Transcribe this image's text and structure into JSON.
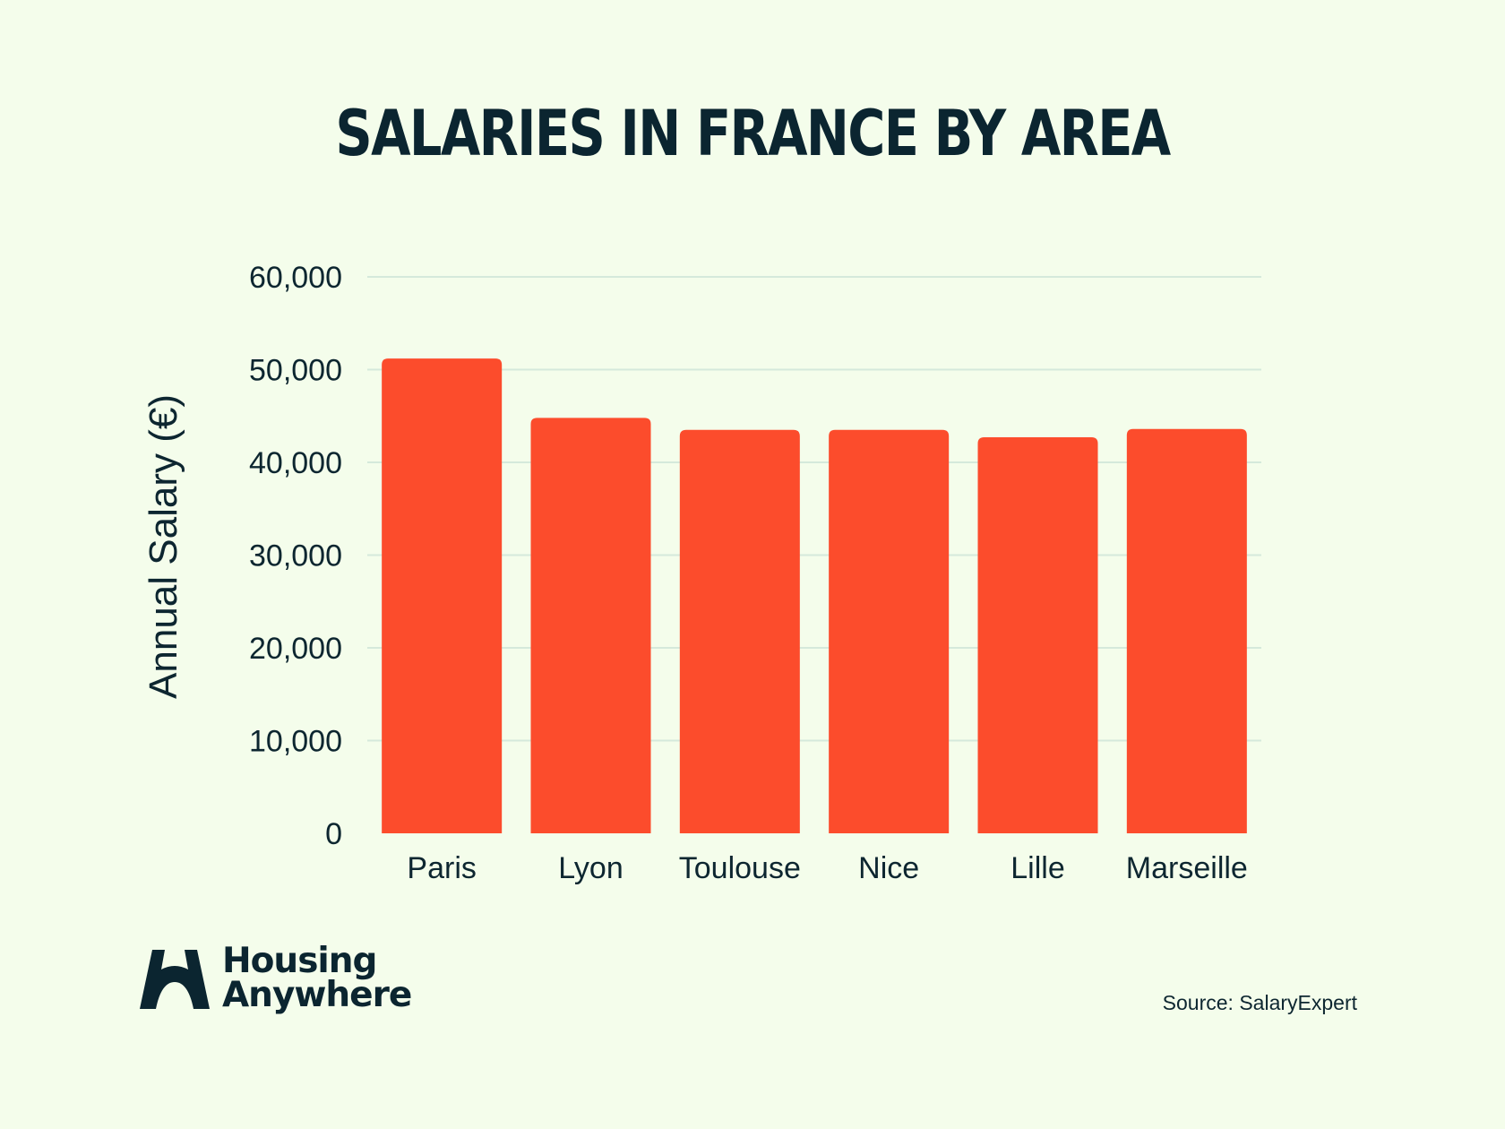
{
  "title": "SALARIES IN FRANCE BY AREA",
  "brand": {
    "line1": "Housing",
    "line2": "Anywhere",
    "icon": "housing-anywhere-logo-icon"
  },
  "source": "Source: SalaryExpert",
  "colors": {
    "bar": "#fc4c2c",
    "background": "#f4fdeb",
    "text": "#0d2630",
    "grid": "#d5e9db"
  },
  "chart_data": {
    "type": "bar",
    "categories": [
      "Paris",
      "Lyon",
      "Toulouse",
      "Nice",
      "Lille",
      "Marseille"
    ],
    "values": [
      51200,
      44800,
      43500,
      43500,
      42700,
      43600
    ],
    "ylabel": "Annual Salary (€)",
    "xlabel": "",
    "ylim": [
      0,
      60000
    ],
    "yticks": [
      0,
      10000,
      20000,
      30000,
      40000,
      50000,
      60000
    ],
    "ytick_labels": [
      "0",
      "10,000",
      "20,000",
      "30,000",
      "40,000",
      "50,000",
      "60,000"
    ],
    "grid": true
  }
}
